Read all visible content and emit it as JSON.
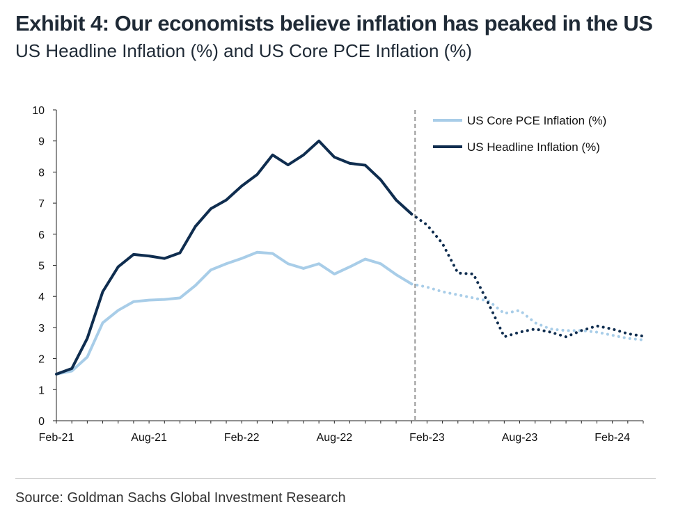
{
  "title": "Exhibit 4: Our economists believe inflation has peaked in the US",
  "subtitle": "US Headline Inflation (%) and US Core PCE Inflation (%)",
  "source": "Source: Goldman Sachs Global Investment Research",
  "chart_data": {
    "type": "line",
    "title": "",
    "xlabel": "",
    "ylabel": "",
    "ylim": [
      0,
      10
    ],
    "yticks": [
      "0",
      "1",
      "2",
      "3",
      "4",
      "5",
      "6",
      "7",
      "8",
      "9",
      "10"
    ],
    "xticks": [
      {
        "index": 0,
        "label": "Feb-21"
      },
      {
        "index": 6,
        "label": "Aug-21"
      },
      {
        "index": 12,
        "label": "Feb-22"
      },
      {
        "index": 18,
        "label": "Aug-22"
      },
      {
        "index": 24,
        "label": "Feb-23"
      },
      {
        "index": 30,
        "label": "Aug-23"
      },
      {
        "index": 36,
        "label": "Feb-24"
      }
    ],
    "months_total": 39,
    "forecast_start_index": 23,
    "grid": false,
    "legend_position": "top-right",
    "series": [
      {
        "name": "US Core PCE Inflation (%)",
        "color": "#a8cde8",
        "values": [
          1.5,
          1.6,
          2.05,
          3.15,
          3.55,
          3.83,
          3.88,
          3.9,
          3.95,
          4.35,
          4.85,
          5.05,
          5.22,
          5.42,
          5.38,
          5.05,
          4.9,
          5.05,
          4.72,
          4.95,
          5.2,
          5.05,
          4.7,
          4.4,
          4.3,
          4.15,
          4.05,
          3.95,
          3.85,
          3.45,
          3.55,
          3.15,
          2.95,
          2.9,
          2.9,
          2.85,
          2.75,
          2.65,
          2.6
        ]
      },
      {
        "name": "US Headline Inflation (%)",
        "color": "#0f2d4f",
        "values": [
          1.5,
          1.68,
          2.65,
          4.15,
          4.95,
          5.35,
          5.3,
          5.22,
          5.4,
          6.25,
          6.82,
          7.1,
          7.55,
          7.92,
          8.55,
          8.23,
          8.55,
          9.0,
          8.48,
          8.28,
          8.22,
          7.75,
          7.1,
          6.65,
          6.3,
          5.7,
          4.75,
          4.72,
          3.75,
          2.7,
          2.85,
          2.95,
          2.85,
          2.7,
          2.9,
          3.05,
          2.95,
          2.8,
          2.72
        ]
      }
    ]
  }
}
